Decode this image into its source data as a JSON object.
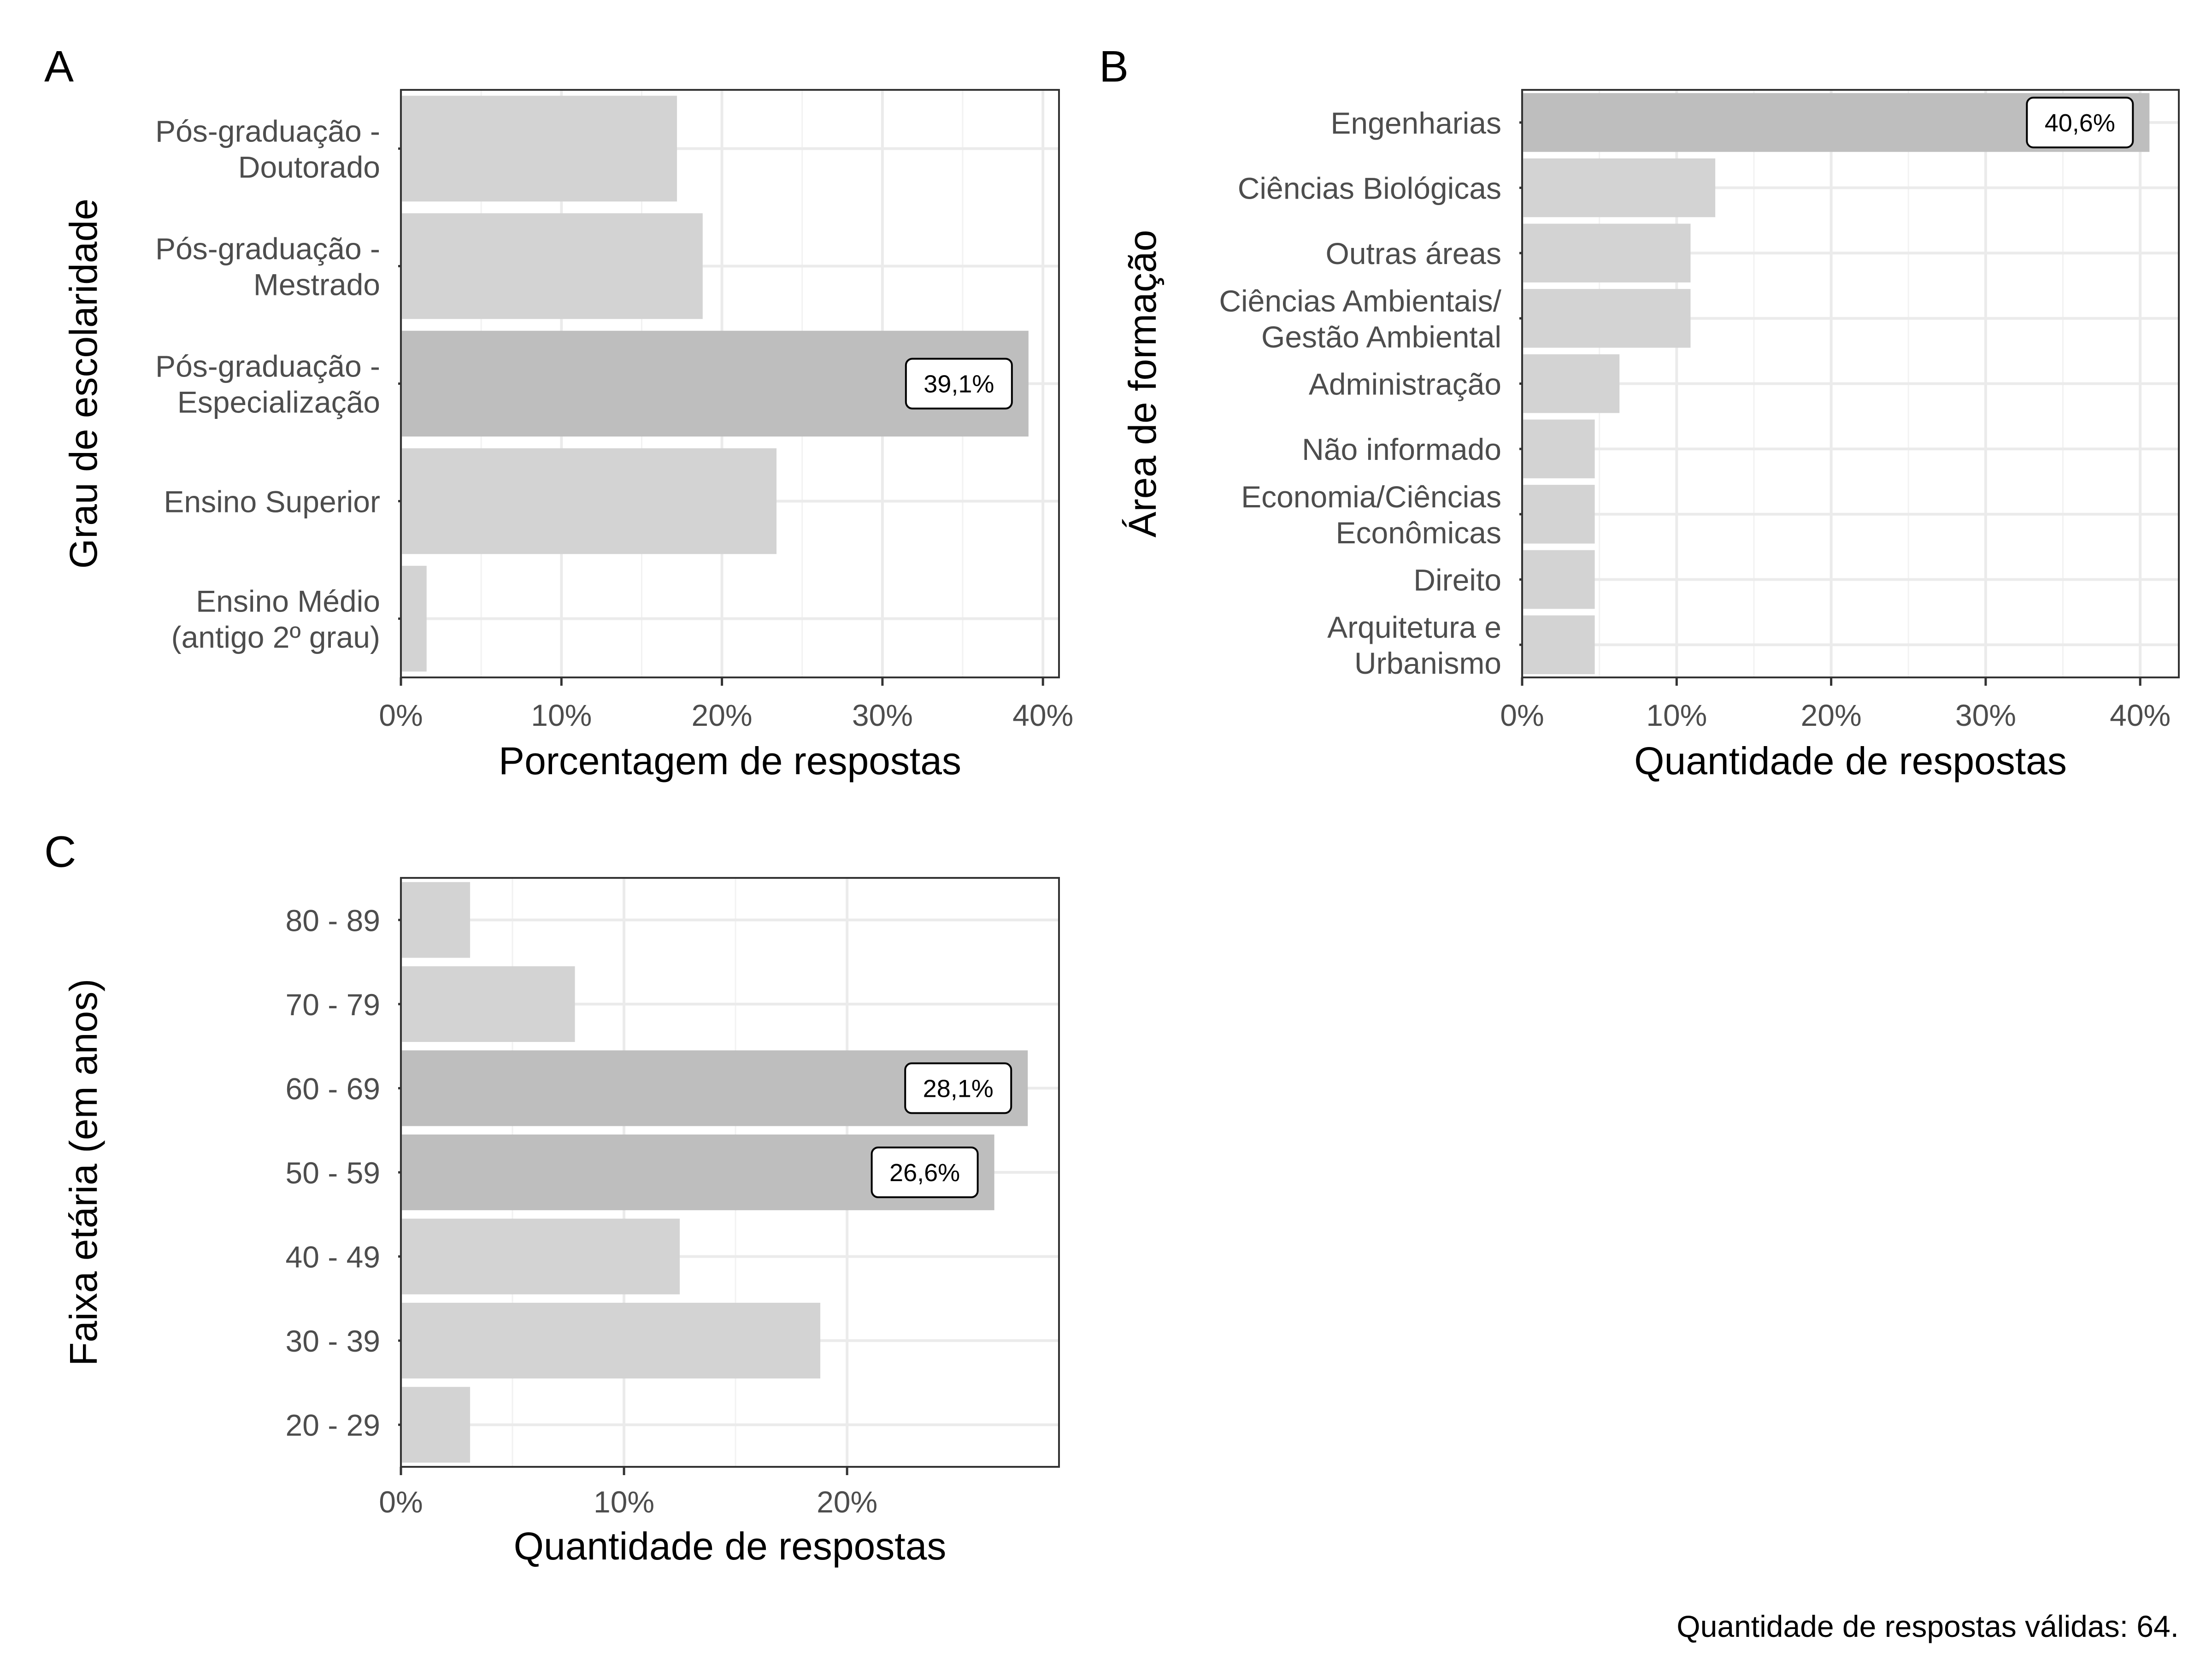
{
  "colors": {
    "bar_default": "#d3d3d3",
    "bar_highlight": "#bebebe",
    "grid_major": "#ebebeb",
    "grid_minor": "#f2f2f2",
    "panel_border": "#333333",
    "tick_text": "#4d4d4d",
    "label_border": "#000000"
  },
  "caption": "Quantidade de respostas válidas: 64.",
  "chart_data": [
    {
      "tag": "A",
      "type": "bar",
      "orientation": "horizontal",
      "title": "",
      "xlabel": "Porcentagem de respostas",
      "ylabel": "Grau de escolaridade",
      "xlim": [
        0,
        41
      ],
      "x_ticks": [
        0,
        10,
        20,
        30,
        40
      ],
      "x_tick_labels": [
        "0%",
        "10%",
        "20%",
        "30%",
        "40%"
      ],
      "grid": true,
      "categories": [
        [
          "Pós-graduação -",
          "Doutorado"
        ],
        [
          "Pós-graduação -",
          "Mestrado"
        ],
        [
          "Pós-graduação -",
          "Especialização"
        ],
        [
          "Ensino Superior"
        ],
        [
          "Ensino Médio",
          "(antigo 2º grau)"
        ]
      ],
      "values": [
        17.2,
        18.8,
        39.1,
        23.4,
        1.6
      ],
      "highlight": [
        false,
        false,
        true,
        false,
        false
      ],
      "data_labels": [
        "",
        "",
        "39,1%",
        "",
        ""
      ]
    },
    {
      "tag": "B",
      "type": "bar",
      "orientation": "horizontal",
      "title": "",
      "xlabel": "Quantidade de respostas",
      "ylabel": "Área de formação",
      "xlim": [
        0,
        42.5
      ],
      "x_ticks": [
        0,
        10,
        20,
        30,
        40
      ],
      "x_tick_labels": [
        "0%",
        "10%",
        "20%",
        "30%",
        "40%"
      ],
      "grid": true,
      "categories": [
        [
          "Engenharias"
        ],
        [
          "Ciências Biológicas"
        ],
        [
          "Outras áreas"
        ],
        [
          "Ciências Ambientais/",
          "Gestão Ambiental"
        ],
        [
          "Administração"
        ],
        [
          "Não informado"
        ],
        [
          "Economia/Ciências",
          "Econômicas"
        ],
        [
          "Direito"
        ],
        [
          "Arquitetura e",
          "Urbanismo"
        ]
      ],
      "values": [
        40.6,
        12.5,
        10.9,
        10.9,
        6.3,
        4.7,
        4.7,
        4.7,
        4.7
      ],
      "highlight": [
        true,
        false,
        false,
        false,
        false,
        false,
        false,
        false,
        false
      ],
      "data_labels": [
        "40,6%",
        "",
        "",
        "",
        "",
        "",
        "",
        "",
        ""
      ]
    },
    {
      "tag": "C",
      "type": "bar",
      "orientation": "horizontal",
      "title": "",
      "xlabel": "Quantidade de respostas",
      "ylabel": "Faixa etária (em anos)",
      "xlim": [
        0,
        29.5
      ],
      "x_ticks": [
        0,
        10,
        20
      ],
      "x_tick_labels": [
        "0%",
        "10%",
        "20%"
      ],
      "grid": true,
      "categories": [
        [
          "80 - 89"
        ],
        [
          "70 - 79"
        ],
        [
          "60 - 69"
        ],
        [
          "50 - 59"
        ],
        [
          "40 - 49"
        ],
        [
          "30 - 39"
        ],
        [
          "20 - 29"
        ]
      ],
      "values": [
        3.1,
        7.8,
        28.1,
        26.6,
        12.5,
        18.8,
        3.1
      ],
      "highlight": [
        false,
        false,
        true,
        true,
        false,
        false,
        false
      ],
      "data_labels": [
        "",
        "",
        "28,1%",
        "26,6%",
        "",
        "",
        ""
      ]
    }
  ]
}
